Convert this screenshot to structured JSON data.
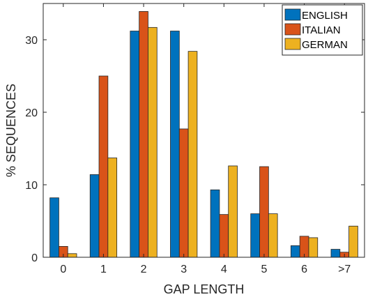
{
  "chart_data": {
    "type": "bar",
    "categories": [
      "0",
      "1",
      "2",
      "3",
      "4",
      "5",
      "6",
      ">7"
    ],
    "series": [
      {
        "name": "ENGLISH",
        "color": "#0072BD",
        "values": [
          8.2,
          11.4,
          31.2,
          31.2,
          9.3,
          6.0,
          1.6,
          1.1
        ]
      },
      {
        "name": "ITALIAN",
        "color": "#D95319",
        "values": [
          1.5,
          25.0,
          33.9,
          17.7,
          5.9,
          12.5,
          2.9,
          0.7
        ]
      },
      {
        "name": "GERMAN",
        "color": "#EDB120",
        "values": [
          0.5,
          13.7,
          31.7,
          28.4,
          12.6,
          6.0,
          2.7,
          4.3
        ]
      }
    ],
    "xlabel": "GAP LENGTH",
    "ylabel": "% SEQUENCES",
    "ylim": [
      0,
      35
    ],
    "yticks": [
      0,
      10,
      20,
      30
    ],
    "grid": false,
    "legend": "top-right"
  }
}
